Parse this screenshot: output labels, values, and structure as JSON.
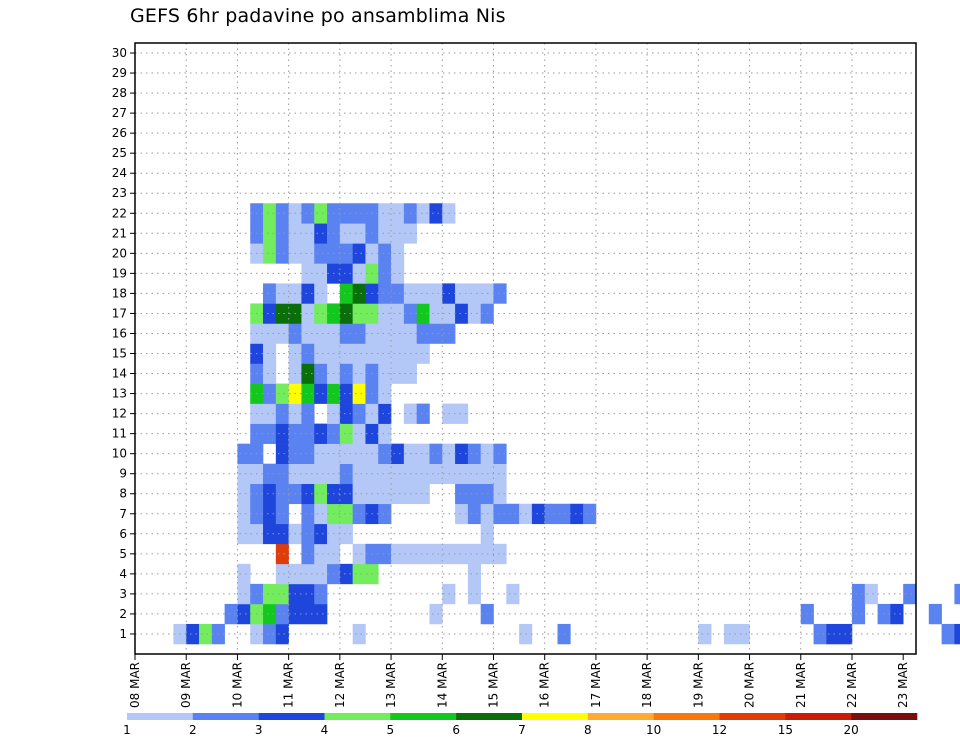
{
  "chart_data": {
    "type": "heatmap",
    "title": "GEFS 6hr padavine po ansamblima Nis",
    "y_labels": [
      "1",
      "2",
      "3",
      "4",
      "5",
      "6",
      "7",
      "8",
      "9",
      "10",
      "11",
      "12",
      "13",
      "14",
      "15",
      "16",
      "17",
      "18",
      "19",
      "20",
      "21",
      "22",
      "23",
      "24",
      "25",
      "26",
      "27",
      "28",
      "29",
      "30"
    ],
    "x_labels": [
      "08 MAR",
      "09 MAR",
      "10 MAR",
      "11 MAR",
      "12 MAR",
      "13 MAR",
      "14 MAR",
      "15 MAR",
      "16 MAR",
      "17 MAR",
      "18 MAR",
      "19 MAR",
      "20 MAR",
      "21 MAR",
      "22 MAR",
      "23 MAR"
    ],
    "grid": true,
    "colorbar": {
      "labels": [
        "1",
        "2",
        "3",
        "4",
        "5",
        "6",
        "7",
        "8",
        "10",
        "12",
        "15",
        "20"
      ],
      "colors": [
        "#b4c8f8",
        "#5a82f0",
        "#1e46dc",
        "#73ec5e",
        "#12c81e",
        "#0a6e0a",
        "#ffff00",
        "#ffaa32",
        "#f87810",
        "#e03c0a",
        "#c81e06",
        "#7a0e0e"
      ]
    },
    "cells": [
      [
        1,
        3,
        1
      ],
      [
        1,
        4,
        3
      ],
      [
        1,
        5,
        4
      ],
      [
        1,
        6,
        2
      ],
      [
        1,
        9,
        1
      ],
      [
        1,
        10,
        2
      ],
      [
        1,
        11,
        3
      ],
      [
        1,
        17,
        1
      ],
      [
        1,
        30,
        1
      ],
      [
        1,
        33,
        2
      ],
      [
        1,
        44,
        1
      ],
      [
        1,
        46,
        1
      ],
      [
        1,
        47,
        1
      ],
      [
        1,
        53,
        2
      ],
      [
        1,
        54,
        3
      ],
      [
        1,
        55,
        3
      ],
      [
        1,
        63,
        2
      ],
      [
        1,
        64,
        3
      ],
      [
        1,
        65,
        1
      ],
      [
        1,
        66,
        1
      ],
      [
        1,
        68,
        3
      ],
      [
        1,
        69,
        2
      ],
      [
        1,
        70,
        3
      ],
      [
        1,
        72,
        3
      ],
      [
        1,
        73,
        1
      ],
      [
        2,
        7,
        2
      ],
      [
        2,
        8,
        3
      ],
      [
        2,
        9,
        4
      ],
      [
        2,
        10,
        5
      ],
      [
        2,
        11,
        2
      ],
      [
        2,
        12,
        3
      ],
      [
        2,
        13,
        3
      ],
      [
        2,
        14,
        3
      ],
      [
        2,
        23,
        1
      ],
      [
        2,
        27,
        2
      ],
      [
        2,
        52,
        2
      ],
      [
        2,
        56,
        2
      ],
      [
        2,
        58,
        2
      ],
      [
        2,
        59,
        3
      ],
      [
        2,
        62,
        2
      ],
      [
        2,
        66,
        1
      ],
      [
        2,
        67,
        3
      ],
      [
        2,
        68,
        3
      ],
      [
        2,
        70,
        1
      ],
      [
        2,
        71,
        3
      ],
      [
        2,
        72,
        1
      ],
      [
        2,
        73,
        1
      ],
      [
        2,
        74,
        1
      ],
      [
        3,
        8,
        1
      ],
      [
        3,
        9,
        2
      ],
      [
        3,
        10,
        4
      ],
      [
        3,
        11,
        4
      ],
      [
        3,
        12,
        3
      ],
      [
        3,
        13,
        3
      ],
      [
        3,
        14,
        2
      ],
      [
        3,
        24,
        1
      ],
      [
        3,
        26,
        1
      ],
      [
        3,
        29,
        1
      ],
      [
        3,
        56,
        2
      ],
      [
        3,
        57,
        1
      ],
      [
        3,
        60,
        2
      ],
      [
        3,
        64,
        2
      ],
      [
        3,
        66,
        1
      ],
      [
        3,
        67,
        3
      ],
      [
        3,
        69,
        1
      ],
      [
        3,
        70,
        1
      ],
      [
        3,
        71,
        1
      ],
      [
        3,
        72,
        1
      ],
      [
        3,
        73,
        2
      ],
      [
        4,
        8,
        1
      ],
      [
        4,
        11,
        1
      ],
      [
        4,
        12,
        1
      ],
      [
        4,
        13,
        1
      ],
      [
        4,
        14,
        1
      ],
      [
        4,
        15,
        2
      ],
      [
        4,
        16,
        3
      ],
      [
        4,
        17,
        4
      ],
      [
        4,
        18,
        4
      ],
      [
        4,
        26,
        1
      ],
      [
        5,
        11,
        10
      ],
      [
        5,
        13,
        2
      ],
      [
        5,
        14,
        1
      ],
      [
        5,
        15,
        1
      ],
      [
        5,
        17,
        1
      ],
      [
        5,
        18,
        2
      ],
      [
        5,
        19,
        2
      ],
      [
        5,
        20,
        1
      ],
      [
        5,
        21,
        1
      ],
      [
        5,
        22,
        1
      ],
      [
        5,
        23,
        1
      ],
      [
        5,
        24,
        1
      ],
      [
        5,
        25,
        1
      ],
      [
        5,
        26,
        1
      ],
      [
        5,
        27,
        1
      ],
      [
        5,
        28,
        1
      ],
      [
        6,
        8,
        1
      ],
      [
        6,
        9,
        1
      ],
      [
        6,
        10,
        3
      ],
      [
        6,
        11,
        3
      ],
      [
        6,
        12,
        1
      ],
      [
        6,
        13,
        2
      ],
      [
        6,
        14,
        3
      ],
      [
        6,
        15,
        1
      ],
      [
        6,
        16,
        1
      ],
      [
        6,
        27,
        1
      ],
      [
        7,
        8,
        1
      ],
      [
        7,
        9,
        2
      ],
      [
        7,
        10,
        3
      ],
      [
        7,
        11,
        2
      ],
      [
        7,
        13,
        2
      ],
      [
        7,
        14,
        1
      ],
      [
        7,
        15,
        4
      ],
      [
        7,
        16,
        4
      ],
      [
        7,
        17,
        2
      ],
      [
        7,
        18,
        3
      ],
      [
        7,
        19,
        2
      ],
      [
        7,
        25,
        1
      ],
      [
        7,
        26,
        2
      ],
      [
        7,
        27,
        1
      ],
      [
        7,
        28,
        2
      ],
      [
        7,
        29,
        2
      ],
      [
        7,
        30,
        1
      ],
      [
        7,
        31,
        3
      ],
      [
        7,
        32,
        2
      ],
      [
        7,
        33,
        2
      ],
      [
        7,
        34,
        3
      ],
      [
        7,
        35,
        2
      ],
      [
        8,
        8,
        1
      ],
      [
        8,
        9,
        2
      ],
      [
        8,
        10,
        3
      ],
      [
        8,
        11,
        2
      ],
      [
        8,
        12,
        2
      ],
      [
        8,
        13,
        3
      ],
      [
        8,
        14,
        4
      ],
      [
        8,
        15,
        3
      ],
      [
        8,
        16,
        3
      ],
      [
        8,
        17,
        1
      ],
      [
        8,
        18,
        1
      ],
      [
        8,
        19,
        1
      ],
      [
        8,
        20,
        1
      ],
      [
        8,
        21,
        1
      ],
      [
        8,
        22,
        1
      ],
      [
        8,
        25,
        2
      ],
      [
        8,
        26,
        2
      ],
      [
        8,
        27,
        2
      ],
      [
        8,
        28,
        1
      ],
      [
        9,
        8,
        1
      ],
      [
        9,
        9,
        1
      ],
      [
        9,
        10,
        2
      ],
      [
        9,
        11,
        2
      ],
      [
        9,
        12,
        1
      ],
      [
        9,
        13,
        1
      ],
      [
        9,
        14,
        1
      ],
      [
        9,
        15,
        1
      ],
      [
        9,
        16,
        2
      ],
      [
        9,
        17,
        1
      ],
      [
        9,
        18,
        1
      ],
      [
        9,
        19,
        1
      ],
      [
        9,
        20,
        1
      ],
      [
        9,
        21,
        1
      ],
      [
        9,
        22,
        1
      ],
      [
        9,
        23,
        1
      ],
      [
        9,
        24,
        1
      ],
      [
        9,
        25,
        1
      ],
      [
        9,
        26,
        1
      ],
      [
        9,
        27,
        1
      ],
      [
        9,
        28,
        1
      ],
      [
        10,
        8,
        2
      ],
      [
        10,
        9,
        2
      ],
      [
        10,
        11,
        3
      ],
      [
        10,
        12,
        2
      ],
      [
        10,
        13,
        2
      ],
      [
        10,
        14,
        1
      ],
      [
        10,
        15,
        1
      ],
      [
        10,
        16,
        1
      ],
      [
        10,
        17,
        1
      ],
      [
        10,
        18,
        1
      ],
      [
        10,
        19,
        2
      ],
      [
        10,
        20,
        3
      ],
      [
        10,
        21,
        1
      ],
      [
        10,
        22,
        1
      ],
      [
        10,
        23,
        2
      ],
      [
        10,
        24,
        1
      ],
      [
        10,
        25,
        3
      ],
      [
        10,
        26,
        2
      ],
      [
        10,
        27,
        1
      ],
      [
        10,
        28,
        2
      ],
      [
        11,
        9,
        2
      ],
      [
        11,
        10,
        2
      ],
      [
        11,
        11,
        3
      ],
      [
        11,
        12,
        2
      ],
      [
        11,
        13,
        2
      ],
      [
        11,
        14,
        3
      ],
      [
        11,
        15,
        2
      ],
      [
        11,
        16,
        4
      ],
      [
        11,
        17,
        1
      ],
      [
        11,
        18,
        3
      ],
      [
        11,
        19,
        1
      ],
      [
        12,
        9,
        1
      ],
      [
        12,
        10,
        1
      ],
      [
        12,
        11,
        2
      ],
      [
        12,
        12,
        1
      ],
      [
        12,
        13,
        2
      ],
      [
        12,
        15,
        1
      ],
      [
        12,
        16,
        3
      ],
      [
        12,
        17,
        2
      ],
      [
        12,
        18,
        1
      ],
      [
        12,
        19,
        3
      ],
      [
        12,
        21,
        1
      ],
      [
        12,
        22,
        2
      ],
      [
        12,
        24,
        1
      ],
      [
        12,
        25,
        1
      ],
      [
        13,
        9,
        5
      ],
      [
        13,
        10,
        2
      ],
      [
        13,
        11,
        4
      ],
      [
        13,
        12,
        7
      ],
      [
        13,
        13,
        5
      ],
      [
        13,
        14,
        3
      ],
      [
        13,
        15,
        5
      ],
      [
        13,
        16,
        3
      ],
      [
        13,
        17,
        7
      ],
      [
        13,
        18,
        2
      ],
      [
        13,
        19,
        1
      ],
      [
        14,
        9,
        2
      ],
      [
        14,
        10,
        1
      ],
      [
        14,
        12,
        1
      ],
      [
        14,
        13,
        6
      ],
      [
        14,
        14,
        2
      ],
      [
        14,
        15,
        1
      ],
      [
        14,
        16,
        2
      ],
      [
        14,
        17,
        1
      ],
      [
        14,
        18,
        2
      ],
      [
        14,
        19,
        1
      ],
      [
        14,
        20,
        1
      ],
      [
        14,
        21,
        1
      ],
      [
        15,
        9,
        3
      ],
      [
        15,
        10,
        1
      ],
      [
        15,
        12,
        1
      ],
      [
        15,
        13,
        2
      ],
      [
        15,
        14,
        1
      ],
      [
        15,
        15,
        1
      ],
      [
        15,
        16,
        1
      ],
      [
        15,
        17,
        1
      ],
      [
        15,
        18,
        1
      ],
      [
        15,
        19,
        1
      ],
      [
        15,
        20,
        1
      ],
      [
        15,
        21,
        1
      ],
      [
        15,
        22,
        1
      ],
      [
        16,
        9,
        1
      ],
      [
        16,
        10,
        1
      ],
      [
        16,
        11,
        1
      ],
      [
        16,
        12,
        2
      ],
      [
        16,
        13,
        1
      ],
      [
        16,
        14,
        1
      ],
      [
        16,
        15,
        1
      ],
      [
        16,
        16,
        2
      ],
      [
        16,
        17,
        2
      ],
      [
        16,
        18,
        1
      ],
      [
        16,
        19,
        1
      ],
      [
        16,
        20,
        1
      ],
      [
        16,
        21,
        1
      ],
      [
        16,
        22,
        2
      ],
      [
        16,
        23,
        2
      ],
      [
        16,
        24,
        2
      ],
      [
        17,
        9,
        4
      ],
      [
        17,
        10,
        3
      ],
      [
        17,
        11,
        6
      ],
      [
        17,
        12,
        6
      ],
      [
        17,
        13,
        1
      ],
      [
        17,
        14,
        4
      ],
      [
        17,
        15,
        5
      ],
      [
        17,
        16,
        6
      ],
      [
        17,
        17,
        4
      ],
      [
        17,
        18,
        4
      ],
      [
        17,
        19,
        1
      ],
      [
        17,
        20,
        1
      ],
      [
        17,
        21,
        2
      ],
      [
        17,
        22,
        5
      ],
      [
        17,
        23,
        1
      ],
      [
        17,
        24,
        1
      ],
      [
        17,
        25,
        3
      ],
      [
        17,
        26,
        1
      ],
      [
        17,
        27,
        2
      ],
      [
        18,
        10,
        2
      ],
      [
        18,
        11,
        1
      ],
      [
        18,
        12,
        1
      ],
      [
        18,
        13,
        3
      ],
      [
        18,
        14,
        1
      ],
      [
        18,
        16,
        5
      ],
      [
        18,
        17,
        6
      ],
      [
        18,
        18,
        3
      ],
      [
        18,
        19,
        2
      ],
      [
        18,
        20,
        2
      ],
      [
        18,
        21,
        1
      ],
      [
        18,
        22,
        1
      ],
      [
        18,
        23,
        1
      ],
      [
        18,
        24,
        3
      ],
      [
        18,
        25,
        1
      ],
      [
        18,
        26,
        1
      ],
      [
        18,
        27,
        1
      ],
      [
        18,
        28,
        2
      ],
      [
        19,
        13,
        1
      ],
      [
        19,
        14,
        1
      ],
      [
        19,
        15,
        3
      ],
      [
        19,
        16,
        3
      ],
      [
        19,
        17,
        1
      ],
      [
        19,
        18,
        4
      ],
      [
        19,
        19,
        2
      ],
      [
        19,
        20,
        1
      ],
      [
        20,
        9,
        1
      ],
      [
        20,
        10,
        4
      ],
      [
        20,
        11,
        2
      ],
      [
        20,
        12,
        1
      ],
      [
        20,
        13,
        1
      ],
      [
        20,
        14,
        2
      ],
      [
        20,
        15,
        2
      ],
      [
        20,
        16,
        2
      ],
      [
        20,
        17,
        3
      ],
      [
        20,
        18,
        1
      ],
      [
        20,
        19,
        2
      ],
      [
        20,
        20,
        1
      ],
      [
        21,
        9,
        2
      ],
      [
        21,
        10,
        4
      ],
      [
        21,
        11,
        2
      ],
      [
        21,
        12,
        1
      ],
      [
        21,
        13,
        1
      ],
      [
        21,
        14,
        3
      ],
      [
        21,
        15,
        2
      ],
      [
        21,
        16,
        1
      ],
      [
        21,
        17,
        1
      ],
      [
        21,
        18,
        2
      ],
      [
        21,
        19,
        1
      ],
      [
        21,
        20,
        1
      ],
      [
        21,
        21,
        1
      ],
      [
        22,
        9,
        2
      ],
      [
        22,
        10,
        4
      ],
      [
        22,
        11,
        2
      ],
      [
        22,
        12,
        1
      ],
      [
        22,
        13,
        2
      ],
      [
        22,
        14,
        4
      ],
      [
        22,
        15,
        2
      ],
      [
        22,
        16,
        2
      ],
      [
        22,
        17,
        2
      ],
      [
        22,
        18,
        2
      ],
      [
        22,
        19,
        1
      ],
      [
        22,
        20,
        1
      ],
      [
        22,
        21,
        2
      ],
      [
        22,
        22,
        1
      ],
      [
        22,
        23,
        3
      ],
      [
        22,
        24,
        1
      ]
    ]
  }
}
